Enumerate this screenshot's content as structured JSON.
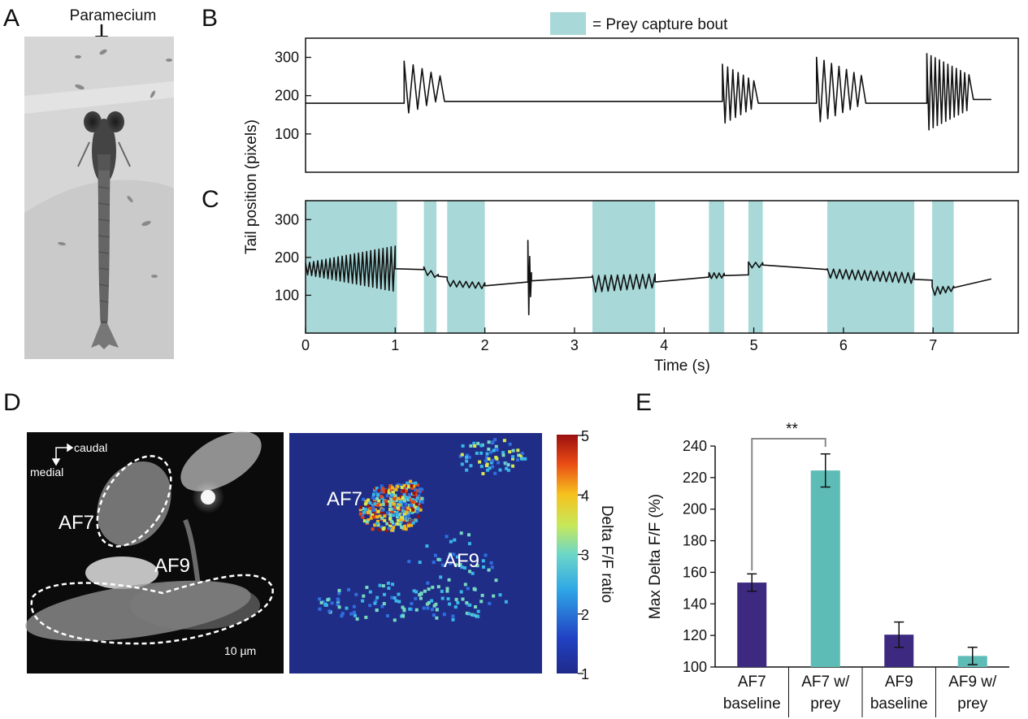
{
  "panels": {
    "A": {
      "letter": "A",
      "annotation": "Paramecium"
    },
    "B": {
      "letter": "B"
    },
    "C": {
      "letter": "C"
    },
    "D": {
      "letter": "D",
      "orientation": {
        "caudal": "caudal",
        "medial": "medial"
      },
      "labels": {
        "af7": "AF7",
        "af9": "AF9"
      },
      "scale_bar": "10 µm",
      "colorbar": {
        "label": "Delta F/F ratio",
        "ticks": [
          "1",
          "2",
          "3",
          "4",
          "5"
        ]
      }
    },
    "E": {
      "letter": "E",
      "significance": "**"
    }
  },
  "legend": {
    "text": "= Prey capture bout",
    "color": "#a8d8d8"
  },
  "shared_ylabel": "Tail position (pixels)",
  "chart_data": [
    {
      "id": "B",
      "type": "line",
      "xlim": [
        0,
        7.95
      ],
      "ylim": [
        0,
        350
      ],
      "yticks": [
        "100",
        "200",
        "300"
      ],
      "baseline": 180,
      "bouts": [
        {
          "start": 1.1,
          "end": 1.5,
          "max": 290,
          "min": 150,
          "cycles": 4,
          "after": 185
        },
        {
          "start": 4.65,
          "end": 5.0,
          "max": 282,
          "min": 125,
          "cycles": 6,
          "after": 180
        },
        {
          "start": 5.7,
          "end": 6.2,
          "max": 300,
          "min": 128,
          "cycles": 6,
          "after": 180
        },
        {
          "start": 6.93,
          "end": 7.4,
          "max": 310,
          "min": 108,
          "cycles": 10,
          "after": 190
        }
      ],
      "line_color": "#111111"
    },
    {
      "id": "C",
      "type": "line",
      "xlim": [
        0,
        7.95
      ],
      "ylim": [
        0,
        350
      ],
      "xticks": [
        "0",
        "1",
        "2",
        "3",
        "4",
        "5",
        "6",
        "7"
      ],
      "yticks": [
        "100",
        "200",
        "300"
      ],
      "xlabel": "Time (s)",
      "prey_capture_bouts": [
        [
          0,
          1.02
        ],
        [
          1.32,
          1.46
        ],
        [
          1.58,
          2.0
        ],
        [
          3.2,
          3.9
        ],
        [
          4.5,
          4.67
        ],
        [
          4.94,
          5.1
        ],
        [
          5.82,
          6.79
        ],
        [
          6.99,
          7.23
        ]
      ],
      "trace_segments": [
        {
          "from": 0.0,
          "to": 1.0,
          "start": 170,
          "end": 170,
          "amp_start": 15,
          "amp_end": 60,
          "cycles": 22
        },
        {
          "from": 1.0,
          "to": 1.32,
          "start": 170,
          "end": 168,
          "amp_start": 0,
          "amp_end": 0,
          "cycles": 0
        },
        {
          "from": 1.32,
          "to": 1.48,
          "start": 165,
          "end": 150,
          "amp_start": 10,
          "amp_end": 5,
          "cycles": 2
        },
        {
          "from": 1.48,
          "to": 1.58,
          "start": 150,
          "end": 148,
          "amp_start": 0,
          "amp_end": 0,
          "cycles": 0
        },
        {
          "from": 1.58,
          "to": 2.0,
          "start": 132,
          "end": 125,
          "amp_start": 8,
          "amp_end": 8,
          "cycles": 6
        },
        {
          "from": 2.0,
          "to": 2.48,
          "start": 125,
          "end": 135,
          "amp_start": 0,
          "amp_end": 0,
          "cycles": 0
        },
        {
          "from": 2.48,
          "to": 2.52,
          "start": 135,
          "end": 140,
          "amp_start": 110,
          "amp_end": 20,
          "cycles": 2
        },
        {
          "from": 2.52,
          "to": 3.2,
          "start": 138,
          "end": 148,
          "amp_start": 0,
          "amp_end": 0,
          "cycles": 0
        },
        {
          "from": 3.2,
          "to": 3.9,
          "start": 130,
          "end": 138,
          "amp_start": 22,
          "amp_end": 18,
          "cycles": 10
        },
        {
          "from": 3.9,
          "to": 4.5,
          "start": 135,
          "end": 148,
          "amp_start": 0,
          "amp_end": 0,
          "cycles": 0
        },
        {
          "from": 4.5,
          "to": 4.67,
          "start": 152,
          "end": 152,
          "amp_start": 8,
          "amp_end": 6,
          "cycles": 3
        },
        {
          "from": 4.67,
          "to": 4.94,
          "start": 152,
          "end": 154,
          "amp_start": 0,
          "amp_end": 0,
          "cycles": 0
        },
        {
          "from": 4.94,
          "to": 5.1,
          "start": 180,
          "end": 180,
          "amp_start": 8,
          "amp_end": 6,
          "cycles": 2
        },
        {
          "from": 5.1,
          "to": 5.82,
          "start": 180,
          "end": 168,
          "amp_start": 0,
          "amp_end": 0,
          "cycles": 0
        },
        {
          "from": 5.82,
          "to": 6.79,
          "start": 158,
          "end": 145,
          "amp_start": 12,
          "amp_end": 14,
          "cycles": 14
        },
        {
          "from": 6.79,
          "to": 6.99,
          "start": 142,
          "end": 140,
          "amp_start": 0,
          "amp_end": 0,
          "cycles": 0
        },
        {
          "from": 6.99,
          "to": 7.23,
          "start": 110,
          "end": 118,
          "amp_start": 12,
          "amp_end": 6,
          "cycles": 4
        },
        {
          "from": 7.23,
          "to": 7.65,
          "start": 120,
          "end": 143,
          "amp_start": 0,
          "amp_end": 0,
          "cycles": 0
        }
      ],
      "line_color": "#111111"
    },
    {
      "id": "E",
      "type": "bar",
      "categories": [
        [
          "AF7",
          "baseline"
        ],
        [
          "AF7 w/",
          "prey"
        ],
        [
          "AF9",
          "baseline"
        ],
        [
          "AF9 w/",
          "prey"
        ]
      ],
      "values": [
        153.5,
        224.5,
        120.5,
        107
      ],
      "errors": [
        5.5,
        10.5,
        8,
        5.5
      ],
      "colors": [
        "#3d2a80",
        "#5dbcb6",
        "#3d2a80",
        "#5dbcb6"
      ],
      "ylabel": "Max Delta F/F (%)",
      "ylim": [
        100,
        240
      ],
      "yticks": [
        "100",
        "120",
        "140",
        "160",
        "180",
        "200",
        "220",
        "240"
      ]
    }
  ]
}
